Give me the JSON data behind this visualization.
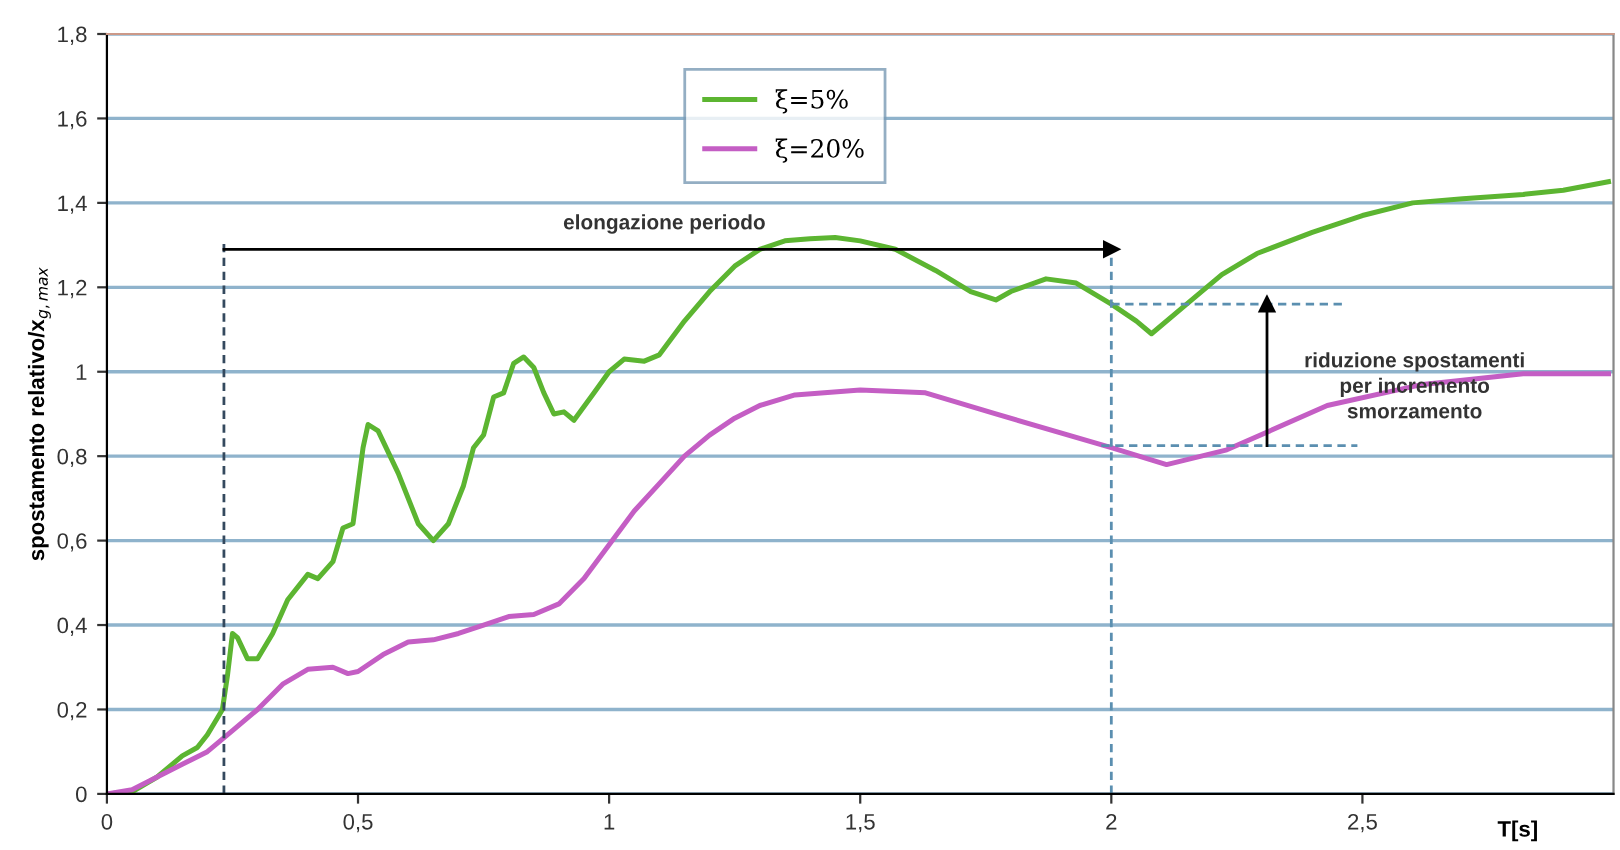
{
  "chart_data": {
    "type": "line",
    "xlabel": "T[s]",
    "ylabel": "spostamento relativo/x$_{g,max}$",
    "xlim": [
      0,
      3
    ],
    "ylim": [
      0,
      1.8
    ],
    "xticks": [
      0,
      {
        "value": 0.5,
        "label": "0,5"
      },
      1,
      {
        "value": 1.5,
        "label": "1,5"
      },
      2,
      {
        "value": 2.5,
        "label": "2,5"
      }
    ],
    "yticks": [
      0,
      {
        "value": 0.2,
        "label": "0,2"
      },
      {
        "value": 0.4,
        "label": "0,4"
      },
      {
        "value": 0.6,
        "label": "0,6"
      },
      {
        "value": 0.8,
        "label": "0,8"
      },
      1,
      {
        "value": 1.2,
        "label": "1,2"
      },
      {
        "value": 1.4,
        "label": "1,4"
      },
      {
        "value": 1.6,
        "label": "1,6"
      },
      {
        "value": 1.8,
        "label": "1,8"
      }
    ],
    "grid": "y",
    "legend": "top",
    "line_style": "solid",
    "marker": "none",
    "series": [
      {
        "name": "ξ=5%",
        "color": "#5cb531",
        "x": [
          0,
          0.05,
          0.1,
          0.15,
          0.18,
          0.2,
          0.22,
          0.23,
          0.24,
          0.25,
          0.26,
          0.28,
          0.3,
          0.33,
          0.36,
          0.4,
          0.42,
          0.45,
          0.47,
          0.49,
          0.51,
          0.52,
          0.54,
          0.58,
          0.62,
          0.65,
          0.68,
          0.71,
          0.73,
          0.75,
          0.77,
          0.79,
          0.81,
          0.83,
          0.85,
          0.87,
          0.89,
          0.91,
          0.93,
          0.97,
          1.0,
          1.03,
          1.07,
          1.1,
          1.15,
          1.2,
          1.25,
          1.3,
          1.35,
          1.4,
          1.45,
          1.5,
          1.57,
          1.65,
          1.72,
          1.77,
          1.8,
          1.87,
          1.93,
          2.0,
          2.05,
          2.08,
          2.15,
          2.22,
          2.29,
          2.4,
          2.5,
          2.6,
          2.7,
          2.82,
          2.9,
          2.99
        ],
        "values": [
          0,
          0.005,
          0.04,
          0.09,
          0.11,
          0.14,
          0.18,
          0.2,
          0.28,
          0.38,
          0.37,
          0.32,
          0.32,
          0.38,
          0.46,
          0.52,
          0.51,
          0.55,
          0.63,
          0.64,
          0.82,
          0.875,
          0.86,
          0.76,
          0.64,
          0.6,
          0.64,
          0.73,
          0.82,
          0.85,
          0.94,
          0.95,
          1.02,
          1.035,
          1.01,
          0.95,
          0.9,
          0.905,
          0.885,
          0.95,
          1.0,
          1.03,
          1.025,
          1.04,
          1.12,
          1.19,
          1.25,
          1.29,
          1.31,
          1.315,
          1.318,
          1.31,
          1.29,
          1.24,
          1.19,
          1.17,
          1.19,
          1.22,
          1.21,
          1.16,
          1.12,
          1.09,
          1.16,
          1.23,
          1.28,
          1.33,
          1.37,
          1.4,
          1.41,
          1.42,
          1.43,
          1.45
        ]
      },
      {
        "name": "ξ=20%",
        "color": "#c45ec4",
        "x": [
          0,
          0.05,
          0.1,
          0.15,
          0.2,
          0.25,
          0.3,
          0.35,
          0.4,
          0.45,
          0.48,
          0.5,
          0.55,
          0.6,
          0.65,
          0.7,
          0.75,
          0.8,
          0.85,
          0.9,
          0.95,
          1.0,
          1.05,
          1.1,
          1.15,
          1.2,
          1.25,
          1.3,
          1.37,
          1.5,
          1.63,
          1.77,
          2.0,
          2.11,
          2.23,
          2.43,
          2.62,
          2.82,
          2.99
        ],
        "values": [
          0,
          0.01,
          0.04,
          0.07,
          0.1,
          0.15,
          0.2,
          0.26,
          0.295,
          0.3,
          0.285,
          0.29,
          0.33,
          0.36,
          0.365,
          0.38,
          0.4,
          0.42,
          0.425,
          0.45,
          0.51,
          0.59,
          0.67,
          0.735,
          0.8,
          0.85,
          0.89,
          0.92,
          0.945,
          0.957,
          0.95,
          0.9,
          0.82,
          0.78,
          0.815,
          0.92,
          0.97,
          0.995,
          0.995
        ]
      },
      {
        "color": "#34495e",
        "line_style": "dashed",
        "x": [
          0.233,
          0.233
        ],
        "values": [
          0,
          1.31
        ]
      },
      {
        "color": "#5b8fb0",
        "line_style": "dashed",
        "x": [
          2.0,
          2.0
        ],
        "values": [
          0,
          1.29
        ]
      },
      {
        "color": "#5b8fb0",
        "line_style": "dashed",
        "x": [
          2.0,
          2.46
        ],
        "values": [
          1.16,
          1.16
        ]
      },
      {
        "color": "#5b8fb0",
        "line_style": "dashed",
        "x": [
          1.98,
          2.49
        ],
        "values": [
          0.825,
          0.825
        ]
      },
      {
        "color": "#000000",
        "line_style": "solid",
        "marker": "triangle",
        "x": [
          0.233,
          2.0
        ],
        "values": [
          1.29,
          1.29
        ]
      },
      {
        "color": "#000000",
        "line_style": "solid",
        "marker": "triangle",
        "x": [
          2.31,
          2.31
        ],
        "values": [
          0.825,
          1.16
        ]
      }
    ],
    "annotations": [
      "elongazione periodo",
      "riduzione spostamenti\nper incremento\nsmorzamento"
    ]
  }
}
